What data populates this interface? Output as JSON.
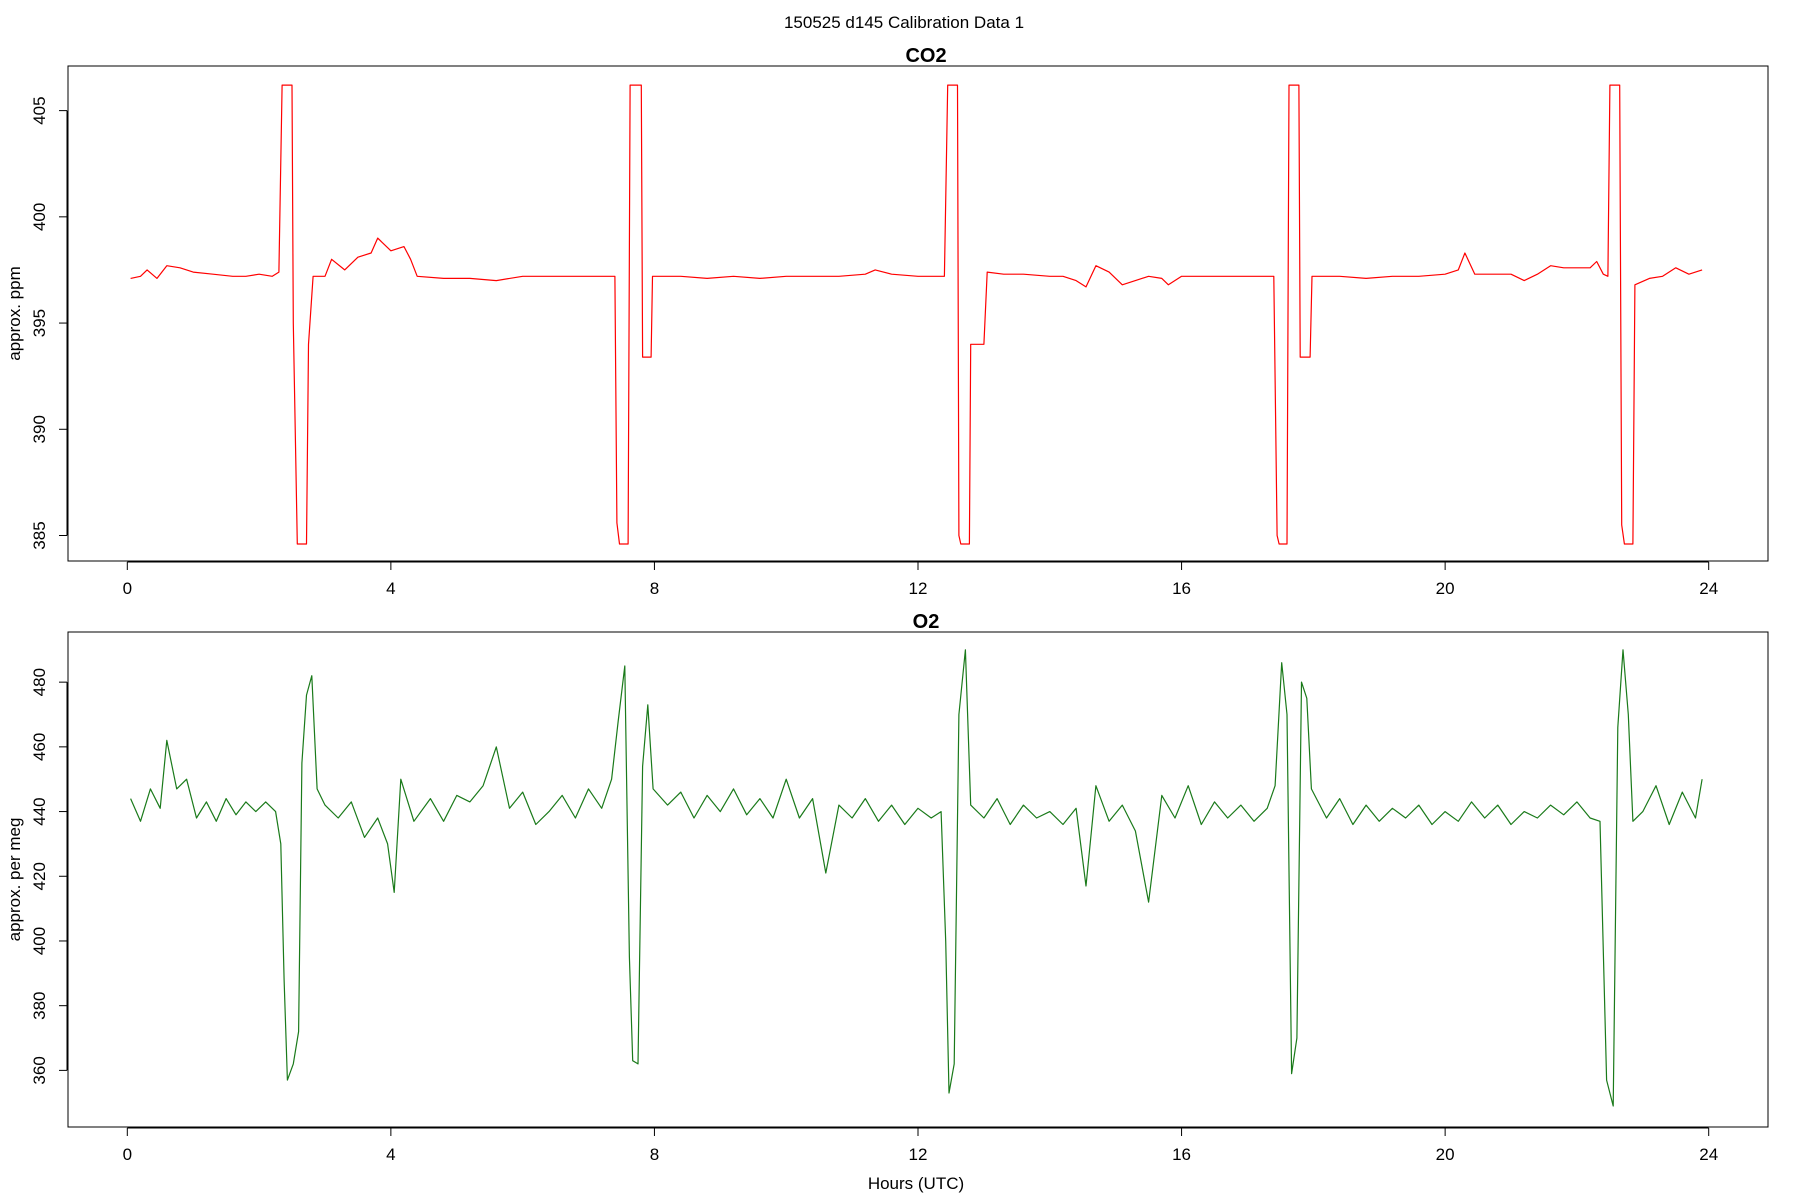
{
  "page_title": "150525   d145   Calibration Data 1",
  "chart_data": [
    {
      "type": "line",
      "title": "CO2",
      "xlabel": "",
      "ylabel": "approx. ppm",
      "xlim": [
        -0.9,
        24.9
      ],
      "ylim": [
        383.8,
        407.1
      ],
      "x_ticks": [
        0,
        4,
        8,
        12,
        16,
        20,
        24
      ],
      "y_ticks": [
        385,
        390,
        395,
        400,
        405
      ],
      "line_color": "#ff0000",
      "grid": false,
      "series": [
        {
          "points": [
            [
              0.05,
              397.1
            ],
            [
              0.2,
              397.2
            ],
            [
              0.3,
              397.5
            ],
            [
              0.45,
              397.1
            ],
            [
              0.6,
              397.7
            ],
            [
              0.8,
              397.6
            ],
            [
              1.0,
              397.4
            ],
            [
              1.3,
              397.3
            ],
            [
              1.6,
              397.2
            ],
            [
              1.8,
              397.2
            ],
            [
              2.0,
              397.3
            ],
            [
              2.2,
              397.2
            ],
            [
              2.3,
              397.4
            ],
            [
              2.35,
              406.2
            ],
            [
              2.5,
              406.2
            ],
            [
              2.52,
              395.0
            ],
            [
              2.58,
              384.6
            ],
            [
              2.72,
              384.6
            ],
            [
              2.75,
              394.0
            ],
            [
              2.82,
              397.2
            ],
            [
              3.0,
              397.2
            ],
            [
              3.1,
              398.0
            ],
            [
              3.3,
              397.5
            ],
            [
              3.5,
              398.1
            ],
            [
              3.7,
              398.3
            ],
            [
              3.8,
              399.0
            ],
            [
              4.0,
              398.4
            ],
            [
              4.2,
              398.6
            ],
            [
              4.3,
              398.0
            ],
            [
              4.4,
              397.2
            ],
            [
              4.8,
              397.1
            ],
            [
              5.2,
              397.1
            ],
            [
              5.6,
              397.0
            ],
            [
              6.0,
              397.2
            ],
            [
              6.4,
              397.2
            ],
            [
              6.8,
              397.2
            ],
            [
              7.2,
              397.2
            ],
            [
              7.4,
              397.2
            ],
            [
              7.43,
              385.6
            ],
            [
              7.47,
              384.6
            ],
            [
              7.6,
              384.6
            ],
            [
              7.63,
              406.2
            ],
            [
              7.8,
              406.2
            ],
            [
              7.82,
              393.4
            ],
            [
              7.95,
              393.4
            ],
            [
              7.97,
              397.2
            ],
            [
              8.4,
              397.2
            ],
            [
              8.8,
              397.1
            ],
            [
              9.2,
              397.2
            ],
            [
              9.6,
              397.1
            ],
            [
              10.0,
              397.2
            ],
            [
              10.4,
              397.2
            ],
            [
              10.8,
              397.2
            ],
            [
              11.2,
              397.3
            ],
            [
              11.35,
              397.5
            ],
            [
              11.6,
              397.3
            ],
            [
              12.0,
              397.2
            ],
            [
              12.4,
              397.2
            ],
            [
              12.45,
              406.2
            ],
            [
              12.6,
              406.2
            ],
            [
              12.62,
              385.0
            ],
            [
              12.65,
              384.6
            ],
            [
              12.78,
              384.6
            ],
            [
              12.8,
              394.0
            ],
            [
              13.0,
              394.0
            ],
            [
              13.05,
              397.4
            ],
            [
              13.3,
              397.3
            ],
            [
              13.6,
              397.3
            ],
            [
              14.0,
              397.2
            ],
            [
              14.2,
              397.2
            ],
            [
              14.4,
              397.0
            ],
            [
              14.55,
              396.7
            ],
            [
              14.7,
              397.7
            ],
            [
              14.9,
              397.4
            ],
            [
              15.1,
              396.8
            ],
            [
              15.3,
              397.0
            ],
            [
              15.5,
              397.2
            ],
            [
              15.7,
              397.1
            ],
            [
              15.8,
              396.8
            ],
            [
              16.0,
              397.2
            ],
            [
              16.4,
              397.2
            ],
            [
              16.8,
              397.2
            ],
            [
              17.2,
              397.2
            ],
            [
              17.4,
              397.2
            ],
            [
              17.45,
              385.0
            ],
            [
              17.48,
              384.6
            ],
            [
              17.6,
              384.6
            ],
            [
              17.63,
              406.2
            ],
            [
              17.78,
              406.2
            ],
            [
              17.8,
              393.4
            ],
            [
              17.95,
              393.4
            ],
            [
              17.98,
              397.2
            ],
            [
              18.4,
              397.2
            ],
            [
              18.8,
              397.1
            ],
            [
              19.2,
              397.2
            ],
            [
              19.6,
              397.2
            ],
            [
              20.0,
              397.3
            ],
            [
              20.2,
              397.5
            ],
            [
              20.3,
              398.3
            ],
            [
              20.45,
              397.3
            ],
            [
              20.7,
              397.3
            ],
            [
              21.0,
              397.3
            ],
            [
              21.2,
              397.0
            ],
            [
              21.4,
              397.3
            ],
            [
              21.6,
              397.7
            ],
            [
              21.8,
              397.6
            ],
            [
              22.0,
              397.6
            ],
            [
              22.2,
              397.6
            ],
            [
              22.3,
              397.9
            ],
            [
              22.4,
              397.3
            ],
            [
              22.47,
              397.2
            ],
            [
              22.5,
              406.2
            ],
            [
              22.65,
              406.2
            ],
            [
              22.68,
              385.5
            ],
            [
              22.72,
              384.6
            ],
            [
              22.85,
              384.6
            ],
            [
              22.88,
              396.8
            ],
            [
              23.1,
              397.1
            ],
            [
              23.3,
              397.2
            ],
            [
              23.5,
              397.6
            ],
            [
              23.7,
              397.3
            ],
            [
              23.9,
              397.5
            ]
          ]
        }
      ]
    },
    {
      "type": "line",
      "title": "O2",
      "xlabel": "Hours (UTC)",
      "ylabel": "approx. per meg",
      "xlim": [
        -0.9,
        24.9
      ],
      "ylim": [
        342.5,
        495.5
      ],
      "x_ticks": [
        0,
        4,
        8,
        12,
        16,
        20,
        24
      ],
      "y_ticks": [
        360,
        380,
        400,
        420,
        440,
        460,
        480
      ],
      "line_color": "#1a7a1a",
      "grid": false,
      "series": [
        {
          "points": [
            [
              0.05,
              444
            ],
            [
              0.2,
              437
            ],
            [
              0.35,
              447
            ],
            [
              0.5,
              441
            ],
            [
              0.6,
              462
            ],
            [
              0.75,
              447
            ],
            [
              0.9,
              450
            ],
            [
              1.05,
              438
            ],
            [
              1.2,
              443
            ],
            [
              1.35,
              437
            ],
            [
              1.5,
              444
            ],
            [
              1.65,
              439
            ],
            [
              1.8,
              443
            ],
            [
              1.95,
              440
            ],
            [
              2.1,
              443
            ],
            [
              2.25,
              440
            ],
            [
              2.33,
              430
            ],
            [
              2.38,
              388
            ],
            [
              2.43,
              357
            ],
            [
              2.52,
              362
            ],
            [
              2.6,
              372
            ],
            [
              2.65,
              455
            ],
            [
              2.72,
              476
            ],
            [
              2.8,
              482
            ],
            [
              2.88,
              447
            ],
            [
              3.0,
              442
            ],
            [
              3.2,
              438
            ],
            [
              3.4,
              443
            ],
            [
              3.6,
              432
            ],
            [
              3.8,
              438
            ],
            [
              3.95,
              430
            ],
            [
              4.05,
              415
            ],
            [
              4.15,
              450
            ],
            [
              4.35,
              437
            ],
            [
              4.6,
              444
            ],
            [
              4.8,
              437
            ],
            [
              5.0,
              445
            ],
            [
              5.2,
              443
            ],
            [
              5.4,
              448
            ],
            [
              5.6,
              460
            ],
            [
              5.8,
              441
            ],
            [
              6.0,
              446
            ],
            [
              6.2,
              436
            ],
            [
              6.4,
              440
            ],
            [
              6.6,
              445
            ],
            [
              6.8,
              438
            ],
            [
              7.0,
              447
            ],
            [
              7.2,
              441
            ],
            [
              7.35,
              450
            ],
            [
              7.45,
              468
            ],
            [
              7.55,
              485
            ],
            [
              7.62,
              395
            ],
            [
              7.67,
              363
            ],
            [
              7.75,
              362
            ],
            [
              7.82,
              454
            ],
            [
              7.9,
              473
            ],
            [
              7.98,
              447
            ],
            [
              8.2,
              442
            ],
            [
              8.4,
              446
            ],
            [
              8.6,
              438
            ],
            [
              8.8,
              445
            ],
            [
              9.0,
              440
            ],
            [
              9.2,
              447
            ],
            [
              9.4,
              439
            ],
            [
              9.6,
              444
            ],
            [
              9.8,
              438
            ],
            [
              10.0,
              450
            ],
            [
              10.2,
              438
            ],
            [
              10.4,
              444
            ],
            [
              10.6,
              421
            ],
            [
              10.8,
              442
            ],
            [
              11.0,
              438
            ],
            [
              11.2,
              444
            ],
            [
              11.4,
              437
            ],
            [
              11.6,
              442
            ],
            [
              11.8,
              436
            ],
            [
              12.0,
              441
            ],
            [
              12.2,
              438
            ],
            [
              12.35,
              440
            ],
            [
              12.42,
              400
            ],
            [
              12.47,
              353
            ],
            [
              12.55,
              362
            ],
            [
              12.62,
              470
            ],
            [
              12.72,
              490
            ],
            [
              12.8,
              442
            ],
            [
              13.0,
              438
            ],
            [
              13.2,
              444
            ],
            [
              13.4,
              436
            ],
            [
              13.6,
              442
            ],
            [
              13.8,
              438
            ],
            [
              14.0,
              440
            ],
            [
              14.2,
              436
            ],
            [
              14.4,
              441
            ],
            [
              14.55,
              417
            ],
            [
              14.7,
              448
            ],
            [
              14.9,
              437
            ],
            [
              15.1,
              442
            ],
            [
              15.3,
              434
            ],
            [
              15.5,
              412
            ],
            [
              15.7,
              445
            ],
            [
              15.9,
              438
            ],
            [
              16.1,
              448
            ],
            [
              16.3,
              436
            ],
            [
              16.5,
              443
            ],
            [
              16.7,
              438
            ],
            [
              16.9,
              442
            ],
            [
              17.1,
              437
            ],
            [
              17.3,
              441
            ],
            [
              17.42,
              448
            ],
            [
              17.52,
              486
            ],
            [
              17.6,
              470
            ],
            [
              17.67,
              359
            ],
            [
              17.75,
              370
            ],
            [
              17.82,
              480
            ],
            [
              17.9,
              475
            ],
            [
              17.97,
              447
            ],
            [
              18.2,
              438
            ],
            [
              18.4,
              444
            ],
            [
              18.6,
              436
            ],
            [
              18.8,
              442
            ],
            [
              19.0,
              437
            ],
            [
              19.2,
              441
            ],
            [
              19.4,
              438
            ],
            [
              19.6,
              442
            ],
            [
              19.8,
              436
            ],
            [
              20.0,
              440
            ],
            [
              20.2,
              437
            ],
            [
              20.4,
              443
            ],
            [
              20.6,
              438
            ],
            [
              20.8,
              442
            ],
            [
              21.0,
              436
            ],
            [
              21.2,
              440
            ],
            [
              21.4,
              438
            ],
            [
              21.6,
              442
            ],
            [
              21.8,
              439
            ],
            [
              22.0,
              443
            ],
            [
              22.2,
              438
            ],
            [
              22.35,
              437
            ],
            [
              22.45,
              357
            ],
            [
              22.55,
              349
            ],
            [
              22.62,
              466
            ],
            [
              22.7,
              490
            ],
            [
              22.78,
              470
            ],
            [
              22.85,
              437
            ],
            [
              23.0,
              440
            ],
            [
              23.2,
              448
            ],
            [
              23.4,
              436
            ],
            [
              23.6,
              446
            ],
            [
              23.8,
              438
            ],
            [
              23.9,
              450
            ]
          ]
        }
      ]
    }
  ]
}
